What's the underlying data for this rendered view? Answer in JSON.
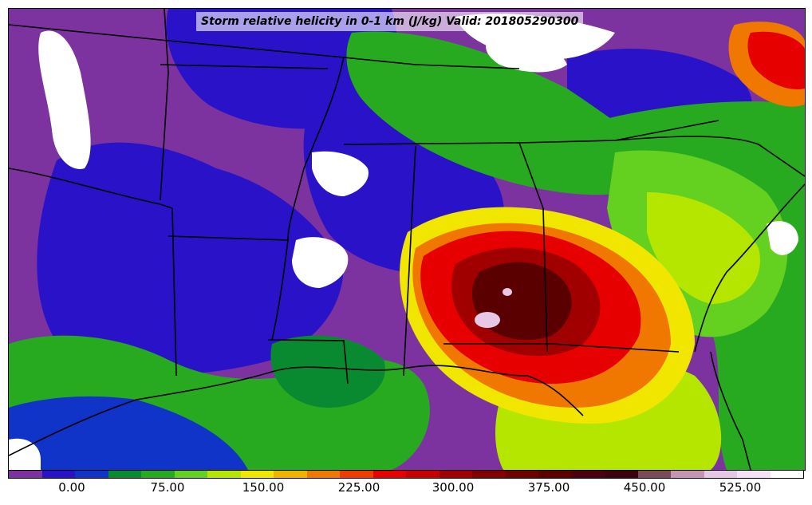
{
  "title": "Storm relative helicity in 0-1 km (J/kg) Valid: 201805290300",
  "colorbar": {
    "colors": [
      "#7c33a0",
      "#2a12c8",
      "#1033c8",
      "#0a8a30",
      "#28aa20",
      "#64d020",
      "#b4e600",
      "#f0e600",
      "#f0b400",
      "#f07800",
      "#f03c00",
      "#e60000",
      "#c80000",
      "#a00000",
      "#820000",
      "#6e0000",
      "#5a0000",
      "#4a0010",
      "#3c0010",
      "#7a4a5a",
      "#c496b4",
      "#e6c8e6",
      "#f5e1f5",
      "#ffffff"
    ],
    "tick_labels": [
      "0.00",
      "75.00",
      "150.00",
      "225.00",
      "300.00",
      "375.00",
      "450.00",
      "525.00"
    ]
  },
  "map": {
    "colors": {
      "purple": "#7c33a0",
      "blue": "#2a12c8",
      "navy": "#1033c8",
      "darkgreen": "#0a8a30",
      "green": "#28aa20",
      "lime": "#64d020",
      "yellowgreen": "#b4e600",
      "yellow": "#f0e600",
      "orange": "#f07800",
      "red": "#e60000",
      "darkred": "#a00000",
      "maroon": "#5a0000",
      "pink": "#e6c8e6",
      "white": "#ffffff"
    }
  }
}
